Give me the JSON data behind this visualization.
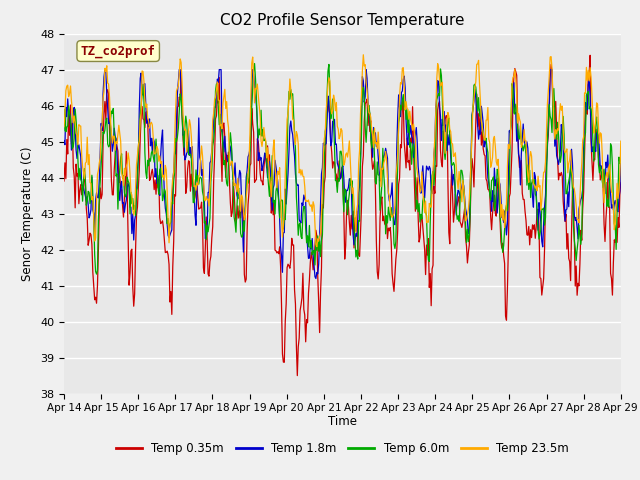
{
  "title": "CO2 Profile Sensor Temperature",
  "ylabel": "Senor Temperature (C)",
  "xlabel": "Time",
  "ylim": [
    38.0,
    48.0
  ],
  "yticks": [
    38.0,
    39.0,
    40.0,
    41.0,
    42.0,
    43.0,
    44.0,
    45.0,
    46.0,
    47.0,
    48.0
  ],
  "xtick_labels": [
    "Apr 14",
    "Apr 15",
    "Apr 16",
    "Apr 17",
    "Apr 18",
    "Apr 19",
    "Apr 20",
    "Apr 21",
    "Apr 22",
    "Apr 23",
    "Apr 24",
    "Apr 25",
    "Apr 26",
    "Apr 27",
    "Apr 28",
    "Apr 29"
  ],
  "colors": {
    "red": "#cc0000",
    "blue": "#0000cc",
    "green": "#00aa00",
    "orange": "#ffaa00"
  },
  "legend_labels": [
    "Temp 0.35m",
    "Temp 1.8m",
    "Temp 6.0m",
    "Temp 23.5m"
  ],
  "watermark_text": "TZ_co2prof",
  "watermark_color": "#8b0000",
  "watermark_bg": "#ffffcc",
  "background_color": "#e8e8e8",
  "plot_bg": "#e8e8e8",
  "grid_color": "#ffffff",
  "n_points": 600
}
